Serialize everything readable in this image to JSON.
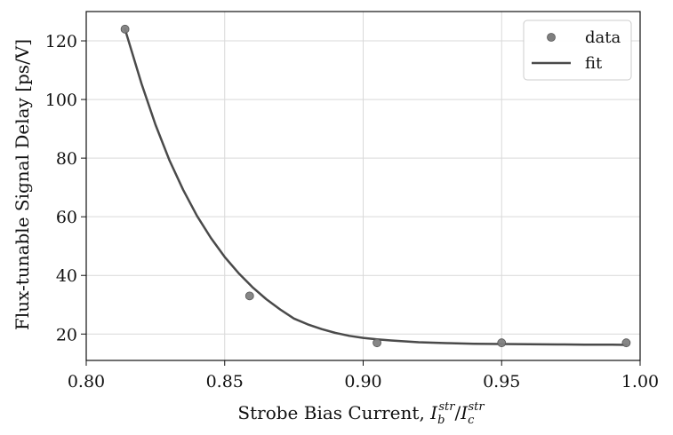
{
  "chart_data": {
    "type": "scatter",
    "xlabel": "Strobe Bias Current, ",
    "xlabel_math": {
      "num_base": "I",
      "num_sup": "str",
      "num_sub": "b",
      "slash": "/",
      "den_base": "I",
      "den_sup": "str",
      "den_sub": "c"
    },
    "ylabel": "Flux-tunable Signal Delay [ps/V]",
    "xlim": [
      0.8,
      1.0
    ],
    "ylim": [
      11,
      130
    ],
    "xticks": [
      0.8,
      0.85,
      0.9,
      0.95,
      1.0
    ],
    "xtick_labels": [
      "0.80",
      "0.85",
      "0.90",
      "0.95",
      "1.00"
    ],
    "yticks": [
      20,
      40,
      60,
      80,
      100,
      120
    ],
    "ytick_labels": [
      "20",
      "40",
      "60",
      "80",
      "100",
      "120"
    ],
    "grid": true,
    "legend_position": "top-right",
    "series": [
      {
        "name": "data",
        "kind": "scatter",
        "color": "#7f7f7f",
        "x": [
          0.814,
          0.859,
          0.905,
          0.95,
          0.995
        ],
        "y": [
          124,
          33,
          17,
          17,
          17
        ]
      },
      {
        "name": "fit",
        "kind": "line",
        "color": "#4a4a4a",
        "x": [
          0.814,
          0.82,
          0.825,
          0.83,
          0.835,
          0.84,
          0.845,
          0.85,
          0.855,
          0.86,
          0.865,
          0.87,
          0.875,
          0.88,
          0.885,
          0.89,
          0.895,
          0.9,
          0.905,
          0.91,
          0.92,
          0.93,
          0.94,
          0.95,
          0.96,
          0.97,
          0.98,
          0.99,
          0.995
        ],
        "y": [
          124.0,
          105.3,
          91.4,
          79.4,
          69.2,
          60.3,
          52.8,
          46.3,
          40.8,
          36.0,
          31.9,
          28.4,
          25.3,
          23.3,
          21.7,
          20.4,
          19.4,
          18.7,
          18.2,
          17.8,
          17.2,
          16.9,
          16.7,
          16.6,
          16.5,
          16.45,
          16.4,
          16.35,
          16.3
        ]
      }
    ]
  }
}
